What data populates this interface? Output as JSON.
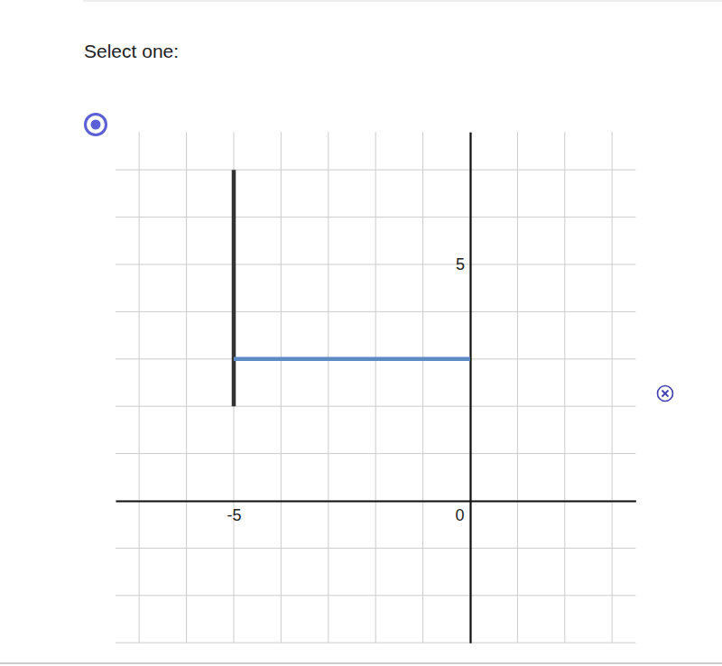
{
  "prompt": "Select one:",
  "chart_data": {
    "type": "line",
    "grid": true,
    "xlim": [
      -7.5,
      3.5
    ],
    "ylim": [
      -3,
      7.8
    ],
    "xticks": [
      {
        "value": -7,
        "label": null
      },
      {
        "value": -6,
        "label": null
      },
      -5,
      {
        "value": -4,
        "label": null
      },
      {
        "value": -3,
        "label": null
      },
      {
        "value": -2,
        "label": null
      },
      {
        "value": -1,
        "label": null
      },
      0,
      {
        "value": 1,
        "label": null
      },
      {
        "value": 2,
        "label": null
      },
      {
        "value": 3,
        "label": null
      }
    ],
    "yticks": [
      {
        "value": -3,
        "label": null
      },
      {
        "value": -2,
        "label": null
      },
      {
        "value": -1,
        "label": null
      },
      {
        "value": 0,
        "label": null
      },
      {
        "value": 1,
        "label": null
      },
      {
        "value": 2,
        "label": null
      },
      {
        "value": 3,
        "label": null
      },
      {
        "value": 4,
        "label": null
      },
      5,
      {
        "value": 6,
        "label": null
      },
      {
        "value": 7,
        "label": null
      }
    ],
    "series": [
      {
        "color": "#333333",
        "x": [
          -5,
          -5
        ],
        "values": [
          2,
          7
        ]
      },
      {
        "color": "#5b8ac4",
        "x": [
          -5,
          0
        ],
        "values": [
          3,
          3
        ]
      }
    ]
  }
}
